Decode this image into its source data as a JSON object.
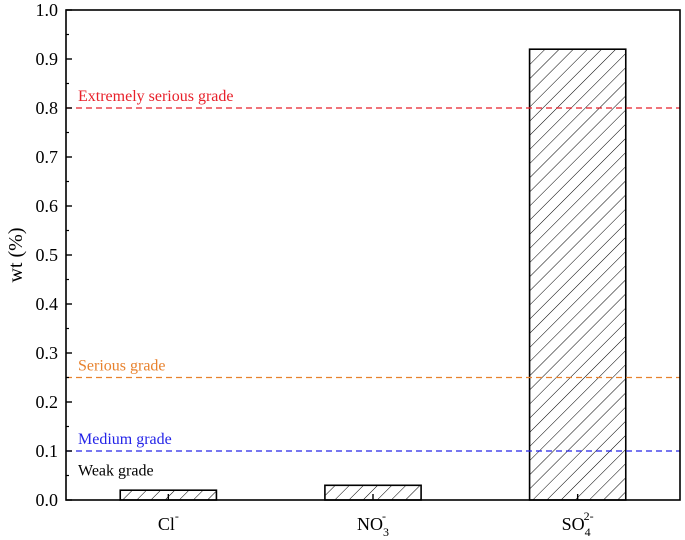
{
  "chart_data": {
    "type": "bar",
    "title": "",
    "xlabel": "",
    "ylabel": "wt (%)",
    "ylim": [
      0,
      1.0
    ],
    "yticks": [
      "0.0",
      "0.1",
      "0.2",
      "0.3",
      "0.4",
      "0.5",
      "0.6",
      "0.7",
      "0.8",
      "0.9",
      "1.0"
    ],
    "categories": [
      {
        "base": "Cl",
        "sup": "-",
        "sub": ""
      },
      {
        "base": "NO",
        "sup": "-",
        "sub": "3"
      },
      {
        "base": "SO",
        "sup": "2-",
        "sub": "4"
      }
    ],
    "values": [
      0.02,
      0.03,
      0.92
    ],
    "bar_fill": "diagonal-hatch",
    "thresholds": [
      {
        "label": "Extremely serious grade",
        "value": 0.8,
        "color": "#e8202a"
      },
      {
        "label": "Serious grade",
        "value": 0.25,
        "color": "#e8822e"
      },
      {
        "label": "Medium grade",
        "value": 0.1,
        "color": "#2424e8"
      },
      {
        "label": "Weak grade",
        "value": null,
        "color": "#000000"
      }
    ],
    "grid": false
  }
}
